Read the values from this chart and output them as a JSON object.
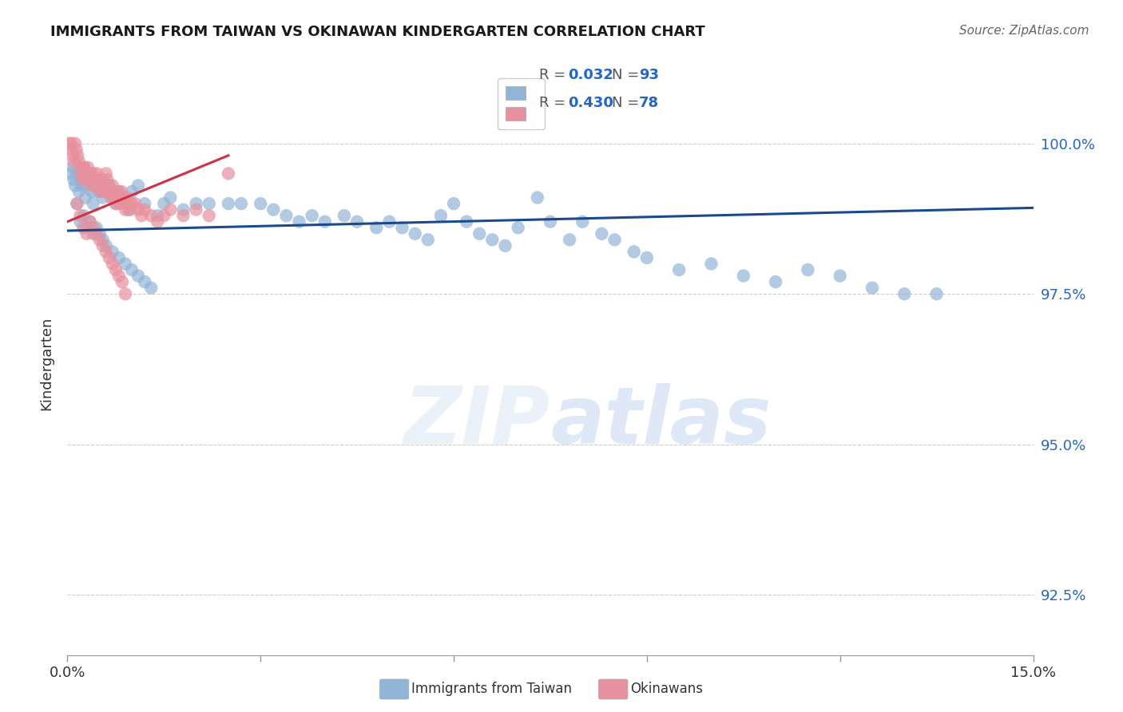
{
  "title": "IMMIGRANTS FROM TAIWAN VS OKINAWAN KINDERGARTEN CORRELATION CHART",
  "source": "Source: ZipAtlas.com",
  "ylabel": "Kindergarten",
  "yticks": [
    92.5,
    95.0,
    97.5,
    100.0
  ],
  "ytick_labels": [
    "92.5%",
    "95.0%",
    "97.5%",
    "100.0%"
  ],
  "xlim": [
    0.0,
    15.0
  ],
  "ylim": [
    91.5,
    101.2
  ],
  "blue_color": "#92b4d7",
  "pink_color": "#e8919e",
  "trendline_blue_color": "#1a4a8a",
  "trendline_pink_color": "#cc3344",
  "background_color": "#ffffff",
  "taiwan_x": [
    0.05,
    0.08,
    0.1,
    0.12,
    0.15,
    0.18,
    0.2,
    0.22,
    0.25,
    0.28,
    0.3,
    0.32,
    0.35,
    0.38,
    0.4,
    0.42,
    0.45,
    0.48,
    0.5,
    0.55,
    0.6,
    0.65,
    0.7,
    0.75,
    0.8,
    0.85,
    0.9,
    0.95,
    1.0,
    1.1,
    1.2,
    1.4,
    1.5,
    1.6,
    1.8,
    2.0,
    2.2,
    2.5,
    2.7,
    3.0,
    3.2,
    3.4,
    3.6,
    3.8,
    4.0,
    4.3,
    4.5,
    4.8,
    5.0,
    5.2,
    5.4,
    5.6,
    5.8,
    6.0,
    6.2,
    6.4,
    6.6,
    6.8,
    7.0,
    7.3,
    7.5,
    7.8,
    8.0,
    8.3,
    8.5,
    8.8,
    9.0,
    9.5,
    10.0,
    10.5,
    11.0,
    11.5,
    12.0,
    12.5,
    13.0,
    13.5,
    0.15,
    0.2,
    0.25,
    0.3,
    0.35,
    0.4,
    0.45,
    0.5,
    0.55,
    0.6,
    0.7,
    0.8,
    0.9,
    1.0,
    1.1,
    1.2,
    1.3
  ],
  "taiwan_y": [
    99.5,
    99.6,
    99.4,
    99.3,
    99.5,
    99.2,
    99.4,
    99.3,
    99.6,
    99.1,
    99.3,
    99.4,
    99.5,
    99.2,
    99.0,
    99.4,
    99.3,
    99.2,
    99.3,
    99.1,
    99.2,
    99.3,
    99.1,
    99.0,
    99.2,
    99.1,
    99.0,
    98.9,
    99.2,
    99.3,
    99.0,
    98.8,
    99.0,
    99.1,
    98.9,
    99.0,
    99.0,
    99.0,
    99.0,
    99.0,
    98.9,
    98.8,
    98.7,
    98.8,
    98.7,
    98.8,
    98.7,
    98.6,
    98.7,
    98.6,
    98.5,
    98.4,
    98.8,
    99.0,
    98.7,
    98.5,
    98.4,
    98.3,
    98.6,
    99.1,
    98.7,
    98.4,
    98.7,
    98.5,
    98.4,
    98.2,
    98.1,
    97.9,
    98.0,
    97.8,
    97.7,
    97.9,
    97.8,
    97.6,
    97.5,
    97.5,
    99.0,
    98.7,
    98.8,
    98.6,
    98.7,
    98.5,
    98.6,
    98.5,
    98.4,
    98.3,
    98.2,
    98.1,
    98.0,
    97.9,
    97.8,
    97.7,
    97.6
  ],
  "okinawa_x": [
    0.02,
    0.04,
    0.06,
    0.08,
    0.1,
    0.12,
    0.14,
    0.16,
    0.18,
    0.2,
    0.22,
    0.24,
    0.26,
    0.28,
    0.3,
    0.32,
    0.34,
    0.36,
    0.38,
    0.4,
    0.42,
    0.44,
    0.46,
    0.48,
    0.5,
    0.52,
    0.54,
    0.56,
    0.58,
    0.6,
    0.62,
    0.64,
    0.66,
    0.68,
    0.7,
    0.72,
    0.74,
    0.76,
    0.78,
    0.8,
    0.82,
    0.84,
    0.86,
    0.88,
    0.9,
    0.92,
    0.95,
    0.98,
    1.0,
    1.05,
    1.1,
    1.15,
    1.2,
    1.3,
    1.4,
    1.5,
    1.6,
    1.8,
    2.0,
    2.2,
    2.5,
    0.15,
    0.2,
    0.25,
    0.3,
    0.35,
    0.4,
    0.45,
    0.5,
    0.55,
    0.6,
    0.65,
    0.7,
    0.75,
    0.8,
    0.85,
    0.9
  ],
  "okinawa_y": [
    100.0,
    99.9,
    100.0,
    99.8,
    99.7,
    100.0,
    99.9,
    99.8,
    99.7,
    99.6,
    99.5,
    99.4,
    99.6,
    99.5,
    99.4,
    99.6,
    99.5,
    99.4,
    99.3,
    99.5,
    99.4,
    99.3,
    99.5,
    99.4,
    99.3,
    99.2,
    99.4,
    99.3,
    99.2,
    99.5,
    99.4,
    99.3,
    99.2,
    99.1,
    99.3,
    99.2,
    99.1,
    99.0,
    99.2,
    99.1,
    99.0,
    99.2,
    99.1,
    99.0,
    98.9,
    99.1,
    99.0,
    98.9,
    99.0,
    99.0,
    98.9,
    98.8,
    98.9,
    98.8,
    98.7,
    98.8,
    98.9,
    98.8,
    98.9,
    98.8,
    99.5,
    99.0,
    98.8,
    98.6,
    98.5,
    98.7,
    98.6,
    98.5,
    98.4,
    98.3,
    98.2,
    98.1,
    98.0,
    97.9,
    97.8,
    97.7,
    97.5
  ],
  "blue_trendline_x": [
    0.0,
    15.0
  ],
  "blue_trendline_y": [
    98.55,
    98.93
  ],
  "pink_trendline_x": [
    0.0,
    2.5
  ],
  "pink_trendline_y": [
    98.7,
    99.8
  ]
}
